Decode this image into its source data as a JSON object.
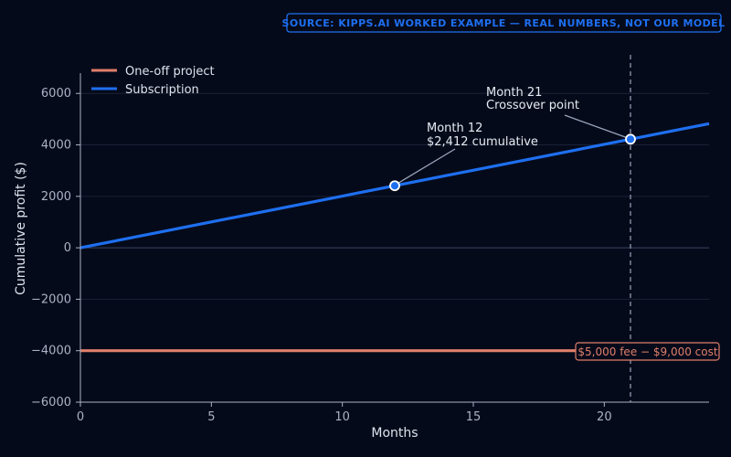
{
  "colors": {
    "background": "#050a1a",
    "grid": "#1a2236",
    "zero_line": "#3a4560",
    "subscription": "#1e6ff0",
    "one_off": "#e07f6a",
    "source_box": "#1e6ff0",
    "annotation_line": "#9aa5bb",
    "crossover_line": "#9aa5bb"
  },
  "source_label": "SOURCE: KIPPS.AI WORKED EXAMPLE — REAL NUMBERS, NOT OUR MODEL",
  "chart_data": {
    "type": "line",
    "title": "",
    "xlabel": "Months",
    "ylabel": "Cumulative profit ($)",
    "xlim": [
      0,
      24
    ],
    "ylim": [
      -6000,
      7500
    ],
    "xticks": [
      0,
      5,
      10,
      15,
      20
    ],
    "yticks": [
      -6000,
      -4000,
      -2000,
      0,
      2000,
      4000,
      6000
    ],
    "ytick_labels": [
      "−6000",
      "−4000",
      "−2000",
      "0",
      "2000",
      "4000",
      "6000"
    ],
    "grid": true,
    "legend_position": "top-left",
    "series": [
      {
        "name": "One-off project",
        "x": [
          0,
          24
        ],
        "y": [
          -4000,
          -4000
        ],
        "color": "#e07f6a"
      },
      {
        "name": "Subscription",
        "x": [
          0,
          24
        ],
        "y": [
          0,
          4824
        ],
        "color": "#1e6ff0"
      }
    ],
    "markers": [
      {
        "x": 12,
        "y": 2412
      },
      {
        "x": 21,
        "y": 4221
      }
    ],
    "annotations": [
      {
        "lines": [
          "Month 12",
          "$2,412 cumulative"
        ],
        "x": 12,
        "y": 2412
      },
      {
        "lines": [
          "Month 21",
          "Crossover point"
        ],
        "x": 21,
        "y": 4221
      }
    ],
    "crossover_x": 21,
    "fee_label": {
      "text": "$5,000 fee − $9,000 cost",
      "x": 24,
      "y": -4000
    }
  }
}
